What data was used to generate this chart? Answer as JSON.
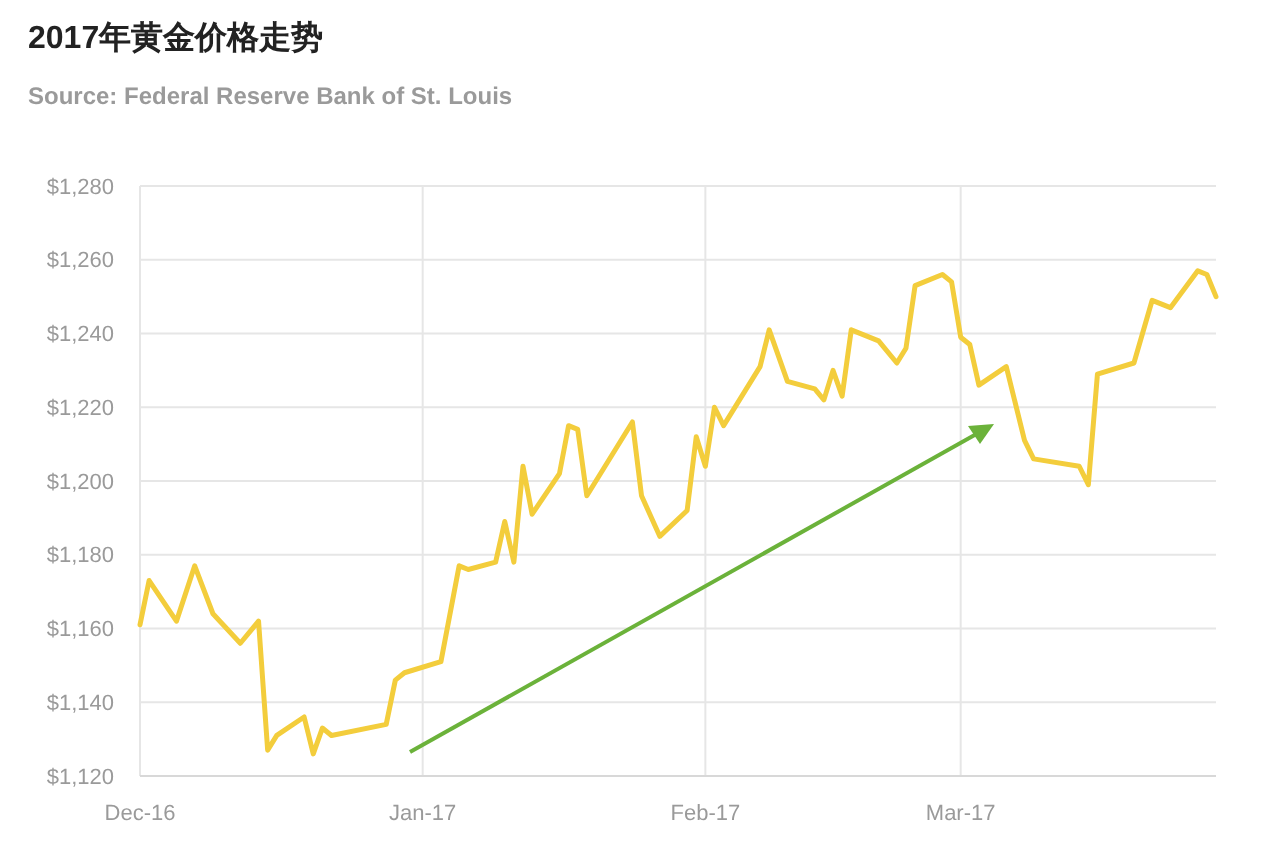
{
  "chart_data": {
    "type": "line",
    "title": "2017年黄金价格走势",
    "subtitle": "Source: Federal Reserve Bank of St. Louis",
    "series": [
      {
        "color": "#f3cd3c",
        "x": [
          "2016-12-01",
          "2016-12-02",
          "2016-12-05",
          "2016-12-07",
          "2016-12-09",
          "2016-12-12",
          "2016-12-14",
          "2016-12-15",
          "2016-12-16",
          "2016-12-19",
          "2016-12-20",
          "2016-12-21",
          "2016-12-22",
          "2016-12-28",
          "2016-12-29",
          "2016-12-30",
          "2017-01-03",
          "2017-01-05",
          "2017-01-06",
          "2017-01-09",
          "2017-01-10",
          "2017-01-11",
          "2017-01-12",
          "2017-01-13",
          "2017-01-16",
          "2017-01-17",
          "2017-01-18",
          "2017-01-19",
          "2017-01-24",
          "2017-01-25",
          "2017-01-27",
          "2017-01-30",
          "2017-01-31",
          "2017-02-01",
          "2017-02-02",
          "2017-02-03",
          "2017-02-07",
          "2017-02-08",
          "2017-02-10",
          "2017-02-13",
          "2017-02-14",
          "2017-02-15",
          "2017-02-16",
          "2017-02-17",
          "2017-02-20",
          "2017-02-22",
          "2017-02-23",
          "2017-02-24",
          "2017-02-27",
          "2017-02-28",
          "2017-03-01",
          "2017-03-02",
          "2017-03-03",
          "2017-03-06",
          "2017-03-08",
          "2017-03-09",
          "2017-03-14",
          "2017-03-15",
          "2017-03-16",
          "2017-03-20",
          "2017-03-22",
          "2017-03-24",
          "2017-03-27",
          "2017-03-28",
          "2017-03-29"
        ],
        "values": [
          1161,
          1173,
          1162,
          1177,
          1164,
          1156,
          1162,
          1127,
          1131,
          1136,
          1126,
          1133,
          1131,
          1134,
          1146,
          1148,
          1151,
          1177,
          1176,
          1178,
          1189,
          1178,
          1204,
          1191,
          1202,
          1215,
          1214,
          1196,
          1216,
          1196,
          1185,
          1192,
          1212,
          1204,
          1220,
          1215,
          1231,
          1241,
          1227,
          1225,
          1222,
          1230,
          1223,
          1241,
          1238,
          1232,
          1236,
          1253,
          1256,
          1254,
          1239,
          1237,
          1226,
          1231,
          1211,
          1206,
          1204,
          1199,
          1229,
          1232,
          1249,
          1247,
          1257,
          1256,
          1250
        ]
      }
    ],
    "xlim": [
      "2016-12-01",
      "2017-03-29"
    ],
    "xticks": [
      {
        "value": "2016-12-01",
        "label": "Dec-16"
      },
      {
        "value": "2017-01-01",
        "label": "Jan-17"
      },
      {
        "value": "2017-02-01",
        "label": "Feb-17"
      },
      {
        "value": "2017-03-01",
        "label": "Mar-17"
      }
    ],
    "ylim": [
      1120,
      1280
    ],
    "yticks": [
      {
        "value": 1120,
        "label": "$1,120"
      },
      {
        "value": 1140,
        "label": "$1,140"
      },
      {
        "value": 1160,
        "label": "$1,160"
      },
      {
        "value": 1180,
        "label": "$1,180"
      },
      {
        "value": 1200,
        "label": "$1,200"
      },
      {
        "value": 1220,
        "label": "$1,220"
      },
      {
        "value": 1240,
        "label": "$1,240"
      },
      {
        "value": 1260,
        "label": "$1,260"
      },
      {
        "value": 1280,
        "label": "$1,280"
      }
    ],
    "grid": true,
    "marker": "none",
    "line_style": "solid"
  }
}
